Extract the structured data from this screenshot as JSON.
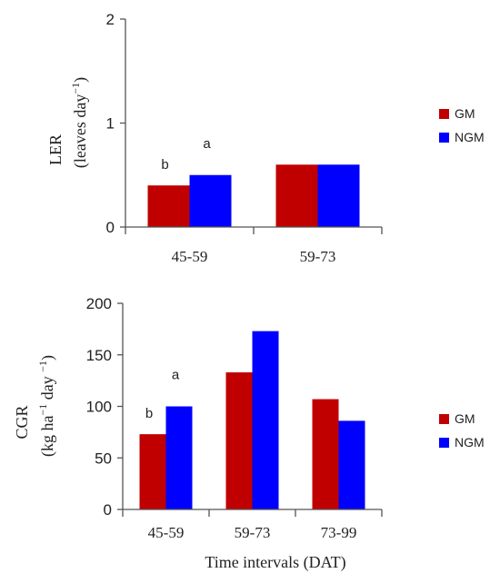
{
  "colors": {
    "GM": "#c00000",
    "NGM": "#0000ff"
  },
  "chart_data": [
    {
      "type": "bar",
      "categories": [
        "45-59",
        "59-73"
      ],
      "series": [
        {
          "name": "GM",
          "values": [
            0.4,
            0.6
          ]
        },
        {
          "name": "NGM",
          "values": [
            0.5,
            0.6
          ]
        }
      ],
      "ylabel_line1": "LER",
      "ylabel_line2_pre": "(leaves day",
      "ylabel_line2_sup": "−1",
      "ylabel_line2_post": ")",
      "ylim": [
        0,
        2
      ],
      "yticks": [
        0,
        1,
        2
      ],
      "annotations": [
        {
          "category": "45-59",
          "series": "GM",
          "text": "b"
        },
        {
          "category": "45-59",
          "series": "NGM",
          "text": "a"
        }
      ],
      "legend": [
        "GM",
        "NGM"
      ],
      "legend_position": "right"
    },
    {
      "type": "bar",
      "categories": [
        "45-59",
        "59-73",
        "73-99"
      ],
      "series": [
        {
          "name": "GM",
          "values": [
            73,
            133,
            107
          ]
        },
        {
          "name": "NGM",
          "values": [
            100,
            173,
            86
          ]
        }
      ],
      "ylabel_line1": "CGR",
      "ylabel_line2_pre": "(kg ha",
      "ylabel_line2_sup1": "−1",
      "ylabel_line2_mid": " day ",
      "ylabel_line2_sup2": "−1",
      "ylabel_line2_post": ")",
      "xlabel": "Time intervals (DAT)",
      "ylim": [
        0,
        200
      ],
      "yticks": [
        0,
        50,
        100,
        150,
        200
      ],
      "annotations": [
        {
          "category": "45-59",
          "series": "GM",
          "text": "b"
        },
        {
          "category": "45-59",
          "series": "NGM",
          "text": "a"
        }
      ],
      "legend": [
        "GM",
        "NGM"
      ],
      "legend_position": "right"
    }
  ]
}
